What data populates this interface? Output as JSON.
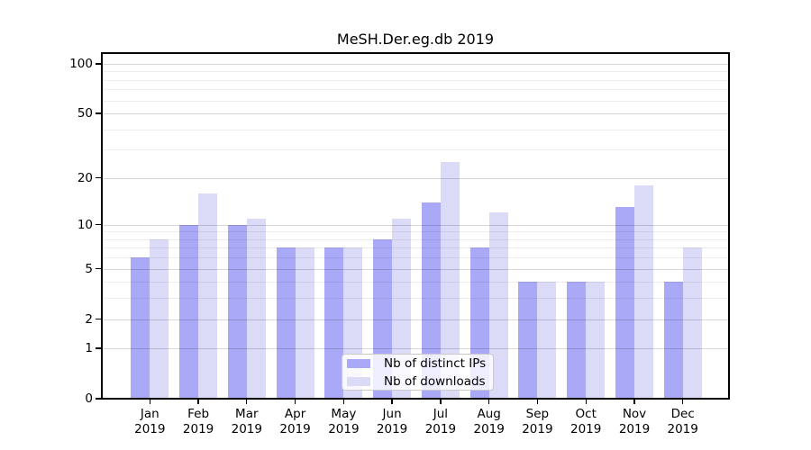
{
  "chart_data": {
    "type": "bar",
    "title": "MeSH.Der.eg.db 2019",
    "categories": [
      "Jan 2019",
      "Feb 2019",
      "Mar 2019",
      "Apr 2019",
      "May 2019",
      "Jun 2019",
      "Jul 2019",
      "Aug 2019",
      "Sep 2019",
      "Oct 2019",
      "Nov 2019",
      "Dec 2019"
    ],
    "series": [
      {
        "name": "Nb of distinct IPs",
        "color": "#a9a9f7",
        "values": [
          6,
          10,
          10,
          7,
          7,
          8,
          14,
          7,
          4,
          4,
          13,
          4
        ]
      },
      {
        "name": "Nb of downloads",
        "color": "#dbdbf8",
        "values": [
          8,
          16,
          11,
          7,
          7,
          11,
          25,
          12,
          4,
          4,
          18,
          7
        ]
      }
    ],
    "y_ticks": [
      0,
      1,
      2,
      5,
      10,
      20,
      50,
      100
    ],
    "y_minor_gridlines": [
      3,
      4,
      6,
      7,
      8,
      9,
      30,
      40,
      60,
      70,
      80,
      90
    ],
    "y_scale": "log1p",
    "ylim": [
      0,
      116
    ],
    "xlabel": "",
    "ylabel": "",
    "grid": {
      "horizontal": true,
      "vertical": false,
      "drawn_above_bars": true
    },
    "legend": {
      "position": "lower-center"
    },
    "colors": {
      "background": "#ffffff",
      "axis": "#000000",
      "grid_major": "rgba(0,0,0,0.16)",
      "grid_minor": "rgba(0,0,0,0.07)"
    }
  }
}
